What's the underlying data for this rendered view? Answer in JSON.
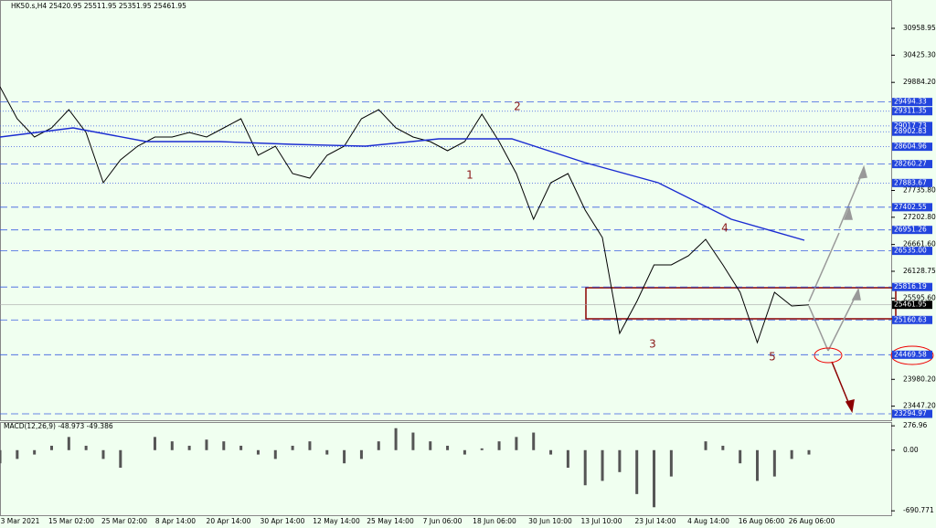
{
  "chart_data": [
    {
      "type": "line",
      "title": "HK50.s,H4  25420.95 25511.95 25351.95 25461.95",
      "x_labels": [
        "3 Mar 2021",
        "15 Mar 02:00",
        "25 Mar 02:00",
        "8 Apr 14:00",
        "20 Apr 14:00",
        "30 Apr 14:00",
        "12 May 14:00",
        "25 May 14:00",
        "7 Jun 06:00",
        "18 Jun 06:00",
        "30 Jun 10:00",
        "13 Jul 10:00",
        "23 Jul 14:00",
        "4 Aug 14:00",
        "16 Aug 06:00",
        "26 Aug 06:00"
      ],
      "ylim": [
        23168,
        31522
      ],
      "yticks": [
        30958.95,
        {
          "value": 30425.3,
          "label": "30425.30"
        },
        {
          "value": 29884.2,
          "label": "29884.20"
        },
        {
          "value": 27735.8,
          "label": "27735.80"
        },
        {
          "value": 27202.8,
          "label": "27202.80"
        },
        {
          "value": 26661.6,
          "label": "26661.60"
        },
        26128.75,
        {
          "value": 25595.6,
          "label": "25595.60"
        },
        {
          "value": 23980.2,
          "label": "23980.20"
        },
        {
          "value": 23447.2,
          "label": "23447.20"
        }
      ],
      "series": [
        {
          "color": "#000000",
          "values": [
            29797,
            29161,
            28798,
            28979,
            29343,
            28889,
            27890,
            28344,
            28616,
            28798,
            28798,
            28889,
            28798,
            28979,
            29161,
            28435,
            28616,
            28072,
            27981,
            28435,
            28616,
            29161,
            29343,
            28979,
            28798,
            28707,
            28525,
            28707,
            29252,
            28707,
            28072,
            27163,
            27890,
            28072,
            27345,
            26800,
            24893,
            25529,
            26255,
            26255,
            26437,
            26764,
            26255,
            25710,
            24712,
            25710,
            25438,
            25461.95
          ]
        },
        {
          "color": "#1a2bd1",
          "values": [
            28798,
            28979,
            28707,
            28707,
            28652,
            28616,
            28762,
            28762,
            28289,
            27890,
            27163,
            26746
          ]
        }
      ],
      "levels": [
        {
          "value": 29494.33,
          "style": "dashed"
        },
        {
          "value": 29311.35,
          "style": "dotted"
        },
        {
          "value": 29017.73,
          "style": "dotted"
        },
        {
          "value": 28902.83,
          "style": "dotted"
        },
        {
          "value": 28604.96,
          "style": "dotted"
        },
        {
          "value": 28260.27,
          "style": "dashed"
        },
        {
          "value": 27883.67,
          "style": "dotted"
        },
        {
          "value": 27402.55,
          "style": "dashed"
        },
        {
          "value": 26951.26,
          "style": "dashed"
        },
        {
          "value": 26535,
          "label": "26535.00",
          "style": "dashed"
        },
        {
          "value": 25816.19,
          "style": "dashed"
        },
        {
          "value": 25160.63,
          "style": "dashed"
        },
        {
          "value": 24469.58,
          "style": "dashed"
        },
        {
          "value": 23294.97,
          "style": "dashed"
        }
      ],
      "current_price": 25461.95,
      "wave_labels": [
        "1",
        "2",
        "3",
        "4",
        "5"
      ]
    },
    {
      "type": "bar",
      "title": "MACD(12,26,9) -48.973 -49.386",
      "ylim": [
        -720,
        320
      ],
      "yticks": [
        276.96,
        {
          "value": 0,
          "label": "0.00"
        },
        -690.771
      ],
      "color": "#555555",
      "values": [
        -150,
        -100,
        -50,
        50,
        150,
        50,
        -100,
        -200,
        0,
        150,
        100,
        50,
        120,
        100,
        50,
        -50,
        -100,
        50,
        100,
        -50,
        -150,
        -100,
        100,
        250,
        200,
        100,
        50,
        -50,
        20,
        100,
        150,
        200,
        -50,
        -200,
        -400,
        -350,
        -250,
        -500,
        -650,
        -300,
        0,
        100,
        50,
        -150,
        -350,
        -300,
        -100,
        -50
      ]
    }
  ]
}
